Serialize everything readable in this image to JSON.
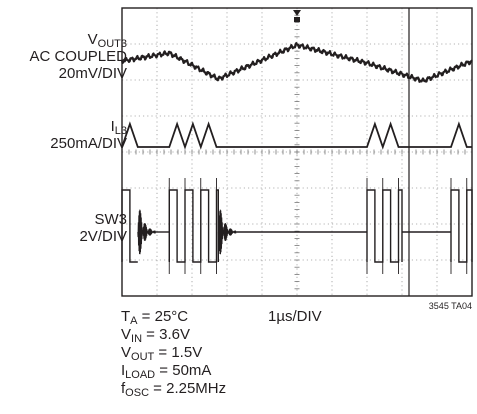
{
  "chart_data": {
    "type": "line",
    "title": "",
    "traces": [
      {
        "name_main": "V",
        "name_sub": "OUT3",
        "line2": "AC COUPLED",
        "scale": "20mV/DIV"
      },
      {
        "name_main": "I",
        "name_sub": "L3",
        "scale": "250mA/DIV"
      },
      {
        "name_main": "SW3",
        "scale": "2V/DIV"
      }
    ],
    "timebase": "1µs/DIV",
    "conditions": [
      {
        "main": "T",
        "sub": "A",
        "rest": " = 25°C"
      },
      {
        "main": "V",
        "sub": "IN",
        "rest": " = 3.6V"
      },
      {
        "main": "V",
        "sub": "OUT",
        "rest": " = 1.5V"
      },
      {
        "main": "I",
        "sub": "LOAD",
        "rest": " = 50mA"
      },
      {
        "main": "f",
        "sub": "OSC",
        "rest": " = 2.25MHz"
      }
    ],
    "figure_id": "3545 TA04",
    "grid": {
      "divisions_x": 10,
      "divisions_y": 8,
      "on": true
    },
    "burst_segments_div": [
      [
        0.0,
        0.45
      ],
      [
        1.35,
        2.75
      ],
      [
        7.0,
        8.0
      ],
      [
        9.4,
        10.0
      ]
    ],
    "ringing_segments_div": [
      [
        0.45,
        0.95
      ],
      [
        2.75,
        3.25
      ]
    ],
    "trigger_marker_div": 5.0
  }
}
